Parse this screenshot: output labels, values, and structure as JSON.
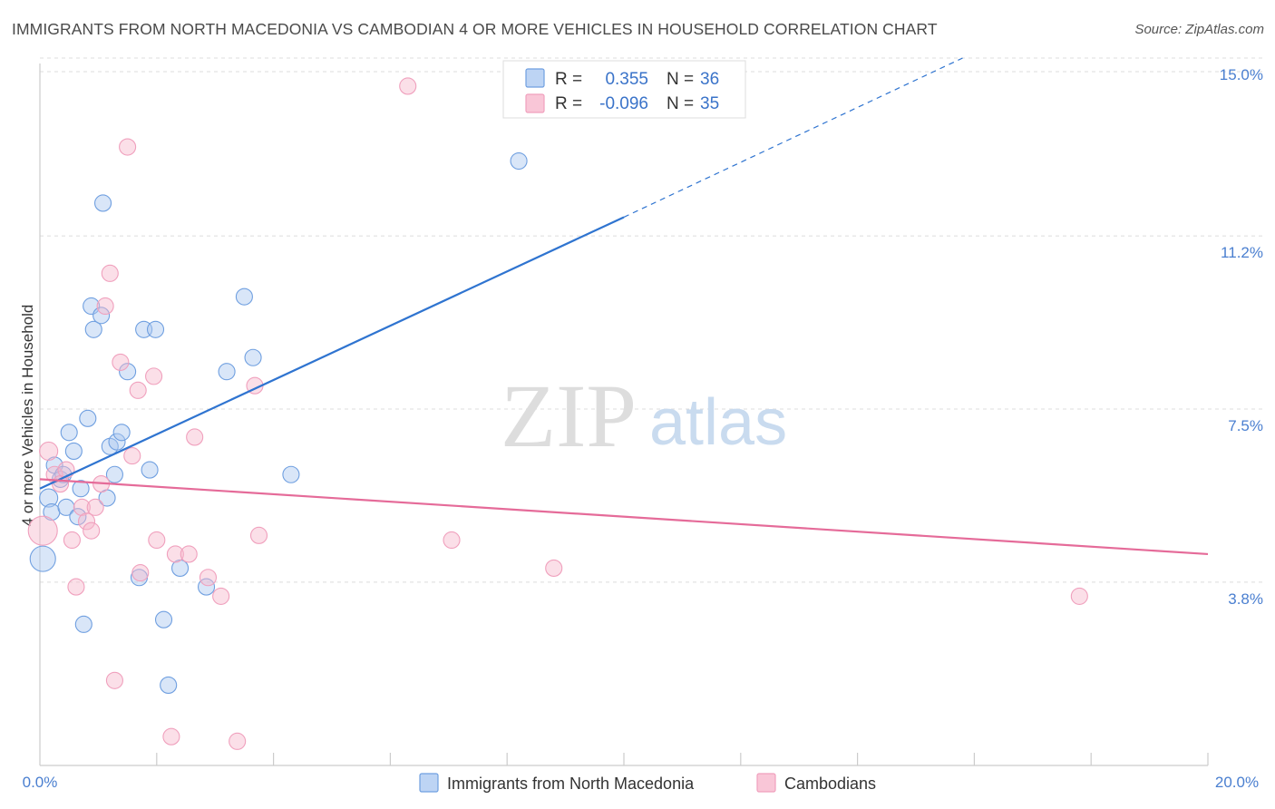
{
  "chart_data": {
    "type": "scatter",
    "title": "IMMIGRANTS FROM NORTH MACEDONIA VS CAMBODIAN 4 OR MORE VEHICLES IN HOUSEHOLD CORRELATION CHART",
    "source": "Source: ZipAtlas.com",
    "xlabel": "",
    "ylabel": "4 or more Vehicles in Household",
    "xlim": [
      0,
      20
    ],
    "ylim": [
      0,
      15
    ],
    "x_tick_labels": [
      "0.0%",
      "20.0%"
    ],
    "y_ticks": [
      3.8,
      7.5,
      11.2,
      15.0
    ],
    "y_tick_labels": [
      "3.8%",
      "7.5%",
      "11.2%",
      "15.0%"
    ],
    "watermark": {
      "zip": "ZIP",
      "atlas": "atlas"
    },
    "legend": {
      "series1": {
        "r_label": "R =",
        "r_value": "0.355",
        "n_label": "N =",
        "n_value": "36"
      },
      "series2": {
        "r_label": "R =",
        "r_value": "-0.096",
        "n_label": "N =",
        "n_value": "35"
      }
    },
    "series": [
      {
        "name": "Immigrants from North Macedonia",
        "color": "#6f9fe0",
        "line_color": "#2f74d0",
        "trend": {
          "x0": 0,
          "y0": 5.8,
          "x1": 10,
          "y1": 11.6,
          "dash_to_x": 15.8,
          "dash_to_y": 15.0
        },
        "points": [
          {
            "x": 0.15,
            "y": 5.6,
            "s": 10
          },
          {
            "x": 0.2,
            "y": 5.3,
            "s": 9
          },
          {
            "x": 0.05,
            "y": 4.3,
            "s": 14
          },
          {
            "x": 0.25,
            "y": 6.3,
            "s": 9
          },
          {
            "x": 0.35,
            "y": 6.0,
            "s": 9
          },
          {
            "x": 0.4,
            "y": 6.1,
            "s": 9
          },
          {
            "x": 0.45,
            "y": 5.4,
            "s": 9
          },
          {
            "x": 0.5,
            "y": 7.0,
            "s": 9
          },
          {
            "x": 0.58,
            "y": 6.6,
            "s": 9
          },
          {
            "x": 0.65,
            "y": 5.2,
            "s": 9
          },
          {
            "x": 0.7,
            "y": 5.8,
            "s": 9
          },
          {
            "x": 0.75,
            "y": 2.9,
            "s": 9
          },
          {
            "x": 0.82,
            "y": 7.3,
            "s": 9
          },
          {
            "x": 0.88,
            "y": 9.7,
            "s": 9
          },
          {
            "x": 0.92,
            "y": 9.2,
            "s": 9
          },
          {
            "x": 1.05,
            "y": 9.5,
            "s": 9
          },
          {
            "x": 1.08,
            "y": 11.9,
            "s": 9
          },
          {
            "x": 1.15,
            "y": 5.6,
            "s": 9
          },
          {
            "x": 1.2,
            "y": 6.7,
            "s": 9
          },
          {
            "x": 1.28,
            "y": 6.1,
            "s": 9
          },
          {
            "x": 1.32,
            "y": 6.8,
            "s": 9
          },
          {
            "x": 1.4,
            "y": 7.0,
            "s": 9
          },
          {
            "x": 1.5,
            "y": 8.3,
            "s": 9
          },
          {
            "x": 1.7,
            "y": 3.9,
            "s": 9
          },
          {
            "x": 1.78,
            "y": 9.2,
            "s": 9
          },
          {
            "x": 1.88,
            "y": 6.2,
            "s": 9
          },
          {
            "x": 1.98,
            "y": 9.2,
            "s": 9
          },
          {
            "x": 2.12,
            "y": 3.0,
            "s": 9
          },
          {
            "x": 2.2,
            "y": 1.6,
            "s": 9
          },
          {
            "x": 2.4,
            "y": 4.1,
            "s": 9
          },
          {
            "x": 2.85,
            "y": 3.7,
            "s": 9
          },
          {
            "x": 3.2,
            "y": 8.3,
            "s": 9
          },
          {
            "x": 3.5,
            "y": 9.9,
            "s": 9
          },
          {
            "x": 3.65,
            "y": 8.6,
            "s": 9
          },
          {
            "x": 4.3,
            "y": 6.1,
            "s": 9
          },
          {
            "x": 8.2,
            "y": 12.8,
            "s": 9
          }
        ]
      },
      {
        "name": "Cambodians",
        "color": "#f0a0bd",
        "line_color": "#e56b99",
        "trend": {
          "x0": 0,
          "y0": 6.0,
          "x1": 20,
          "y1": 4.4
        },
        "points": [
          {
            "x": 0.05,
            "y": 4.9,
            "s": 16
          },
          {
            "x": 0.15,
            "y": 6.6,
            "s": 10
          },
          {
            "x": 0.25,
            "y": 6.1,
            "s": 9
          },
          {
            "x": 0.35,
            "y": 5.9,
            "s": 9
          },
          {
            "x": 0.45,
            "y": 6.2,
            "s": 9
          },
          {
            "x": 0.55,
            "y": 4.7,
            "s": 9
          },
          {
            "x": 0.62,
            "y": 3.7,
            "s": 9
          },
          {
            "x": 0.72,
            "y": 5.4,
            "s": 9
          },
          {
            "x": 0.8,
            "y": 5.1,
            "s": 9
          },
          {
            "x": 0.88,
            "y": 4.9,
            "s": 9
          },
          {
            "x": 0.95,
            "y": 5.4,
            "s": 9
          },
          {
            "x": 1.05,
            "y": 5.9,
            "s": 9
          },
          {
            "x": 1.12,
            "y": 9.7,
            "s": 9
          },
          {
            "x": 1.2,
            "y": 10.4,
            "s": 9
          },
          {
            "x": 1.28,
            "y": 1.7,
            "s": 9
          },
          {
            "x": 1.38,
            "y": 8.5,
            "s": 9
          },
          {
            "x": 1.5,
            "y": 13.1,
            "s": 9
          },
          {
            "x": 1.58,
            "y": 6.5,
            "s": 9
          },
          {
            "x": 1.68,
            "y": 7.9,
            "s": 9
          },
          {
            "x": 1.72,
            "y": 4.0,
            "s": 9
          },
          {
            "x": 1.95,
            "y": 8.2,
            "s": 9
          },
          {
            "x": 2.0,
            "y": 4.7,
            "s": 9
          },
          {
            "x": 2.25,
            "y": 0.5,
            "s": 9
          },
          {
            "x": 2.32,
            "y": 4.4,
            "s": 9
          },
          {
            "x": 2.55,
            "y": 4.4,
            "s": 9
          },
          {
            "x": 2.65,
            "y": 6.9,
            "s": 9
          },
          {
            "x": 2.88,
            "y": 3.9,
            "s": 9
          },
          {
            "x": 3.1,
            "y": 3.5,
            "s": 9
          },
          {
            "x": 3.38,
            "y": 0.4,
            "s": 9
          },
          {
            "x": 3.68,
            "y": 8.0,
            "s": 9
          },
          {
            "x": 3.75,
            "y": 4.8,
            "s": 9
          },
          {
            "x": 6.3,
            "y": 14.4,
            "s": 9
          },
          {
            "x": 7.05,
            "y": 4.7,
            "s": 9
          },
          {
            "x": 8.8,
            "y": 4.1,
            "s": 9
          },
          {
            "x": 17.8,
            "y": 3.5,
            "s": 9
          }
        ]
      }
    ]
  }
}
